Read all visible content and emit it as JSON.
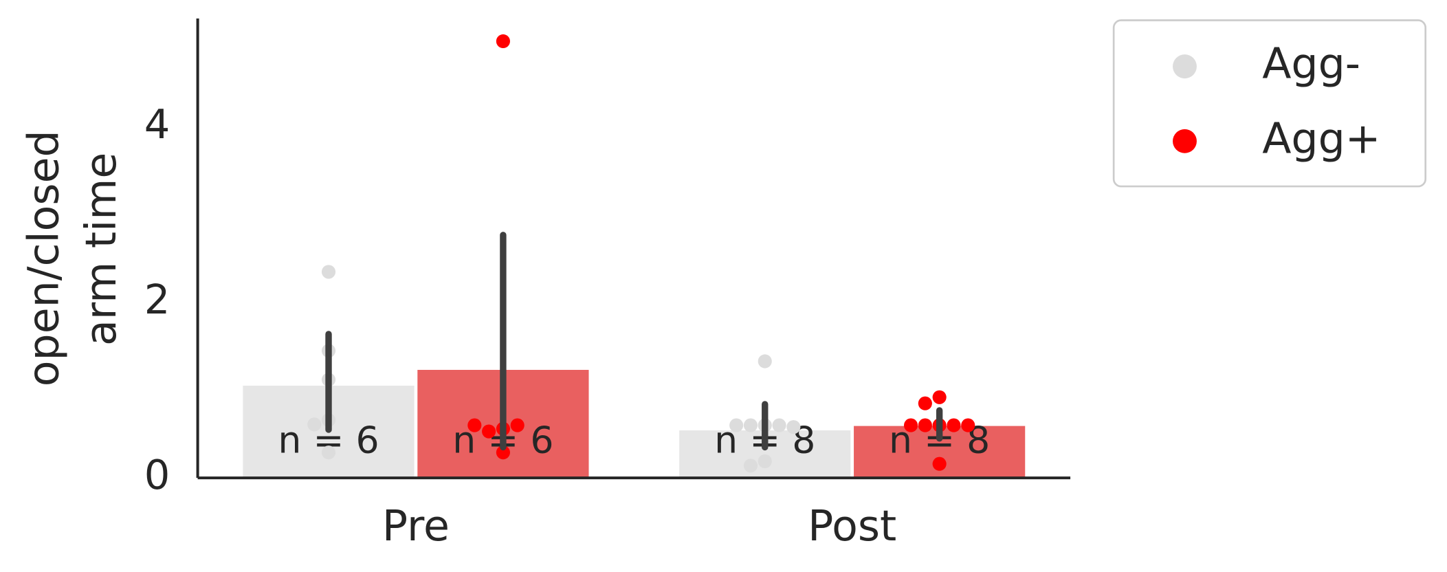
{
  "chart_data": {
    "type": "bar",
    "ylabel": [
      "open/closed",
      "arm time"
    ],
    "categories": [
      "Pre",
      "Post"
    ],
    "ylim": [
      0,
      5.24
    ],
    "yticks": [
      0,
      2,
      4
    ],
    "legend": "outside-upper-right",
    "series": [
      {
        "name": "Agg-",
        "color": "#dcdcdc",
        "bar_color": "#e6e6e6",
        "values": [
          1.06,
          0.55
        ],
        "ci": [
          [
            0.55,
            1.64
          ],
          [
            0.35,
            0.84
          ]
        ],
        "n_labels": [
          "n = 6",
          "n = 8"
        ],
        "points": [
          [
            2.35,
            1.45,
            1.12,
            0.66,
            0.61,
            0.29
          ],
          [
            1.33,
            0.6,
            0.6,
            0.6,
            0.6,
            0.58,
            0.19,
            0.14
          ]
        ]
      },
      {
        "name": "Agg+",
        "color": "#ff0000",
        "bar_color": "#e96060",
        "values": [
          1.24,
          0.6
        ],
        "ci": [
          [
            0.35,
            2.77
          ],
          [
            0.45,
            0.77
          ]
        ],
        "n_labels": [
          "n = 6",
          "n = 8"
        ],
        "points": [
          [
            4.98,
            0.56,
            0.53,
            0.6,
            0.6,
            0.29
          ],
          [
            0.92,
            0.85,
            0.6,
            0.6,
            0.6,
            0.6,
            0.6,
            0.16
          ]
        ]
      }
    ]
  }
}
